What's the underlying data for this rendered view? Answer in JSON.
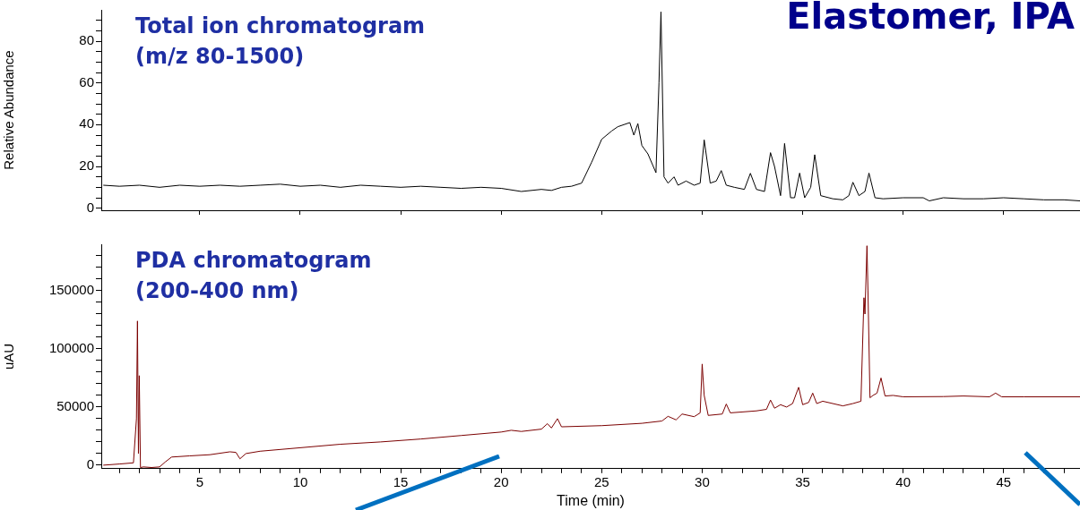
{
  "chart_data": [
    {
      "type": "line",
      "title": "Elastomer, IPA",
      "ylabel": "Relative Abundance",
      "annotations": [
        "Total ion chromatogram",
        "(m/z 80-1500)"
      ],
      "tick_labels": "y",
      "grid": false,
      "legend": false,
      "marker": "none",
      "line_style": "solid",
      "xlim": [
        0.1,
        48.8
      ],
      "ylim": [
        -1,
        95
      ],
      "xticks": [
        {
          "value": 5,
          "label": null
        },
        {
          "value": 10,
          "label": null
        },
        {
          "value": 15,
          "label": null
        },
        {
          "value": 20,
          "label": null
        },
        {
          "value": 25,
          "label": null
        },
        {
          "value": 30,
          "label": null
        },
        {
          "value": 35,
          "label": null
        },
        {
          "value": 40,
          "label": null
        },
        {
          "value": 45,
          "label": null
        }
      ],
      "yticks": [
        0,
        {
          "value": 5,
          "label": null
        },
        {
          "value": 10,
          "label": null
        },
        {
          "value": 15,
          "label": null
        },
        20,
        {
          "value": 25,
          "label": null
        },
        {
          "value": 30,
          "label": null
        },
        {
          "value": 35,
          "label": null
        },
        40,
        {
          "value": 45,
          "label": null
        },
        {
          "value": 50,
          "label": null
        },
        {
          "value": 55,
          "label": null
        },
        60,
        {
          "value": 65,
          "label": null
        },
        {
          "value": 70,
          "label": null
        },
        {
          "value": 75,
          "label": null
        },
        80,
        {
          "value": 85,
          "label": null
        },
        {
          "value": 90,
          "label": null
        }
      ],
      "series": [
        {
          "color": "#000000",
          "x": [
            0.2,
            1,
            2,
            3,
            4,
            5,
            6,
            7,
            8,
            9,
            10,
            11,
            12,
            13,
            14,
            15,
            16,
            17,
            18,
            19,
            20,
            21,
            22,
            22.5,
            23,
            23.5,
            24,
            24.5,
            25,
            25.5,
            25.8,
            26.1,
            26.4,
            26.6,
            26.8,
            27,
            27.3,
            27.7,
            27.85,
            27.95,
            28.1,
            28.3,
            28.6,
            28.8,
            29.2,
            29.6,
            29.9,
            30.1,
            30.4,
            30.7,
            30.95,
            31.2,
            31.6,
            32.1,
            32.4,
            32.7,
            33.1,
            33.4,
            33.6,
            33.9,
            34.1,
            34.4,
            34.6,
            34.85,
            35.1,
            35.4,
            35.6,
            35.9,
            36.5,
            37,
            37.3,
            37.5,
            37.8,
            38.1,
            38.3,
            38.6,
            39,
            40,
            41,
            41.3,
            42,
            43,
            44,
            45,
            46,
            47,
            48,
            48.8
          ],
          "values": [
            11,
            10.5,
            11,
            10,
            11,
            10.5,
            11,
            10.5,
            11,
            11.5,
            10.5,
            11,
            10,
            11,
            10.5,
            10,
            10.5,
            10,
            9.5,
            10,
            9.5,
            8,
            9,
            8.5,
            10,
            10.5,
            12,
            22,
            33,
            37,
            39,
            40,
            41,
            35,
            40.5,
            30,
            26,
            17,
            60,
            94,
            15,
            12,
            15,
            11,
            13,
            11,
            12,
            32.7,
            12,
            13,
            18,
            11,
            10,
            9,
            16.7,
            9,
            8,
            26.6,
            20,
            6,
            31,
            5,
            5,
            16.8,
            5,
            10,
            25.6,
            6,
            4.5,
            4,
            6,
            12.4,
            6,
            8,
            16.8,
            5,
            4.5,
            5,
            5,
            3.5,
            5,
            4.5,
            4.5,
            5,
            4.5,
            4,
            4,
            3.5
          ]
        }
      ]
    },
    {
      "type": "line",
      "xlabel": "Time (min)",
      "ylabel": "uAU",
      "annotations": [
        "PDA chromatogram",
        "(200-400 nm)"
      ],
      "grid": false,
      "legend": false,
      "marker": "none",
      "line_style": "solid",
      "xlim": [
        0.1,
        48.8
      ],
      "ylim": [
        -3000,
        190000
      ],
      "xticks": [
        {
          "value": 1,
          "label": null
        },
        {
          "value": 2,
          "label": null
        },
        {
          "value": 3,
          "label": null
        },
        {
          "value": 4,
          "label": null
        },
        5,
        {
          "value": 6,
          "label": null
        },
        {
          "value": 7,
          "label": null
        },
        {
          "value": 8,
          "label": null
        },
        {
          "value": 9,
          "label": null
        },
        10,
        {
          "value": 11,
          "label": null
        },
        {
          "value": 12,
          "label": null
        },
        {
          "value": 13,
          "label": null
        },
        {
          "value": 14,
          "label": null
        },
        15,
        {
          "value": 16,
          "label": null
        },
        {
          "value": 17,
          "label": null
        },
        {
          "value": 18,
          "label": null
        },
        {
          "value": 19,
          "label": null
        },
        20,
        {
          "value": 21,
          "label": null
        },
        {
          "value": 22,
          "label": null
        },
        {
          "value": 23,
          "label": null
        },
        {
          "value": 24,
          "label": null
        },
        25,
        {
          "value": 26,
          "label": null
        },
        {
          "value": 27,
          "label": null
        },
        {
          "value": 28,
          "label": null
        },
        {
          "value": 29,
          "label": null
        },
        30,
        {
          "value": 31,
          "label": null
        },
        {
          "value": 32,
          "label": null
        },
        {
          "value": 33,
          "label": null
        },
        {
          "value": 34,
          "label": null
        },
        35,
        {
          "value": 36,
          "label": null
        },
        {
          "value": 37,
          "label": null
        },
        {
          "value": 38,
          "label": null
        },
        {
          "value": 39,
          "label": null
        },
        40,
        {
          "value": 41,
          "label": null
        },
        {
          "value": 42,
          "label": null
        },
        {
          "value": 43,
          "label": null
        },
        {
          "value": 44,
          "label": null
        },
        45,
        {
          "value": 46,
          "label": null
        },
        {
          "value": 47,
          "label": null
        },
        {
          "value": 48,
          "label": null
        }
      ],
      "yticks": [
        0,
        {
          "value": 10000,
          "label": null
        },
        {
          "value": 20000,
          "label": null
        },
        {
          "value": 30000,
          "label": null
        },
        {
          "value": 40000,
          "label": null
        },
        50000,
        {
          "value": 60000,
          "label": null
        },
        {
          "value": 70000,
          "label": null
        },
        {
          "value": 80000,
          "label": null
        },
        {
          "value": 90000,
          "label": null
        },
        100000,
        {
          "value": 110000,
          "label": null
        },
        {
          "value": 120000,
          "label": null
        },
        {
          "value": 130000,
          "label": null
        },
        {
          "value": 140000,
          "label": null
        },
        150000,
        {
          "value": 160000,
          "label": null
        },
        {
          "value": 170000,
          "label": null
        },
        {
          "value": 180000,
          "label": null
        }
      ],
      "series": [
        {
          "color": "#7b0000",
          "x": [
            0.2,
            1,
            1.7,
            1.85,
            1.9,
            1.95,
            1.99,
            2.05,
            2.2,
            2.6,
            3,
            3.3,
            3.6,
            4.5,
            5.5,
            6.5,
            6.8,
            7,
            7.3,
            8,
            10,
            12,
            14,
            16,
            18,
            20,
            20.5,
            21,
            22,
            22.3,
            22.5,
            22.8,
            23,
            25,
            27,
            28,
            28.3,
            28.7,
            29,
            29.6,
            29.9,
            30.0,
            30.1,
            30.3,
            31,
            31.2,
            31.4,
            32.7,
            33.2,
            33.4,
            33.6,
            33.9,
            34.2,
            34.5,
            34.8,
            35,
            35.3,
            35.5,
            35.7,
            36,
            37,
            37.5,
            37.9,
            38.05,
            38.1,
            38.2,
            38.25,
            38.35,
            38.5,
            38.7,
            38.9,
            39.1,
            39.5,
            40,
            42,
            43,
            44.3,
            44.6,
            44.9,
            46,
            48.8
          ],
          "values": [
            0,
            1000,
            2000,
            40000,
            124000,
            10000,
            77000,
            -2000,
            -1500,
            -2000,
            -1500,
            3000,
            7000,
            8000,
            9000,
            11500,
            11000,
            5500,
            10000,
            12000,
            15000,
            18000,
            20000,
            22500,
            25500,
            28500,
            30000,
            29000,
            31000,
            35700,
            32000,
            40000,
            33000,
            34000,
            36000,
            38000,
            42000,
            39000,
            44000,
            41700,
            45000,
            87000,
            60000,
            42800,
            44000,
            52600,
            45000,
            46700,
            48000,
            56000,
            49000,
            52000,
            50000,
            53000,
            67000,
            52000,
            54000,
            62000,
            53000,
            55000,
            51000,
            53000,
            55000,
            144000,
            130000,
            188700,
            150000,
            58000,
            60000,
            62000,
            75000,
            59500,
            60000,
            58800,
            59000,
            59500,
            58800,
            62000,
            58800,
            58800,
            58800
          ]
        }
      ]
    }
  ]
}
